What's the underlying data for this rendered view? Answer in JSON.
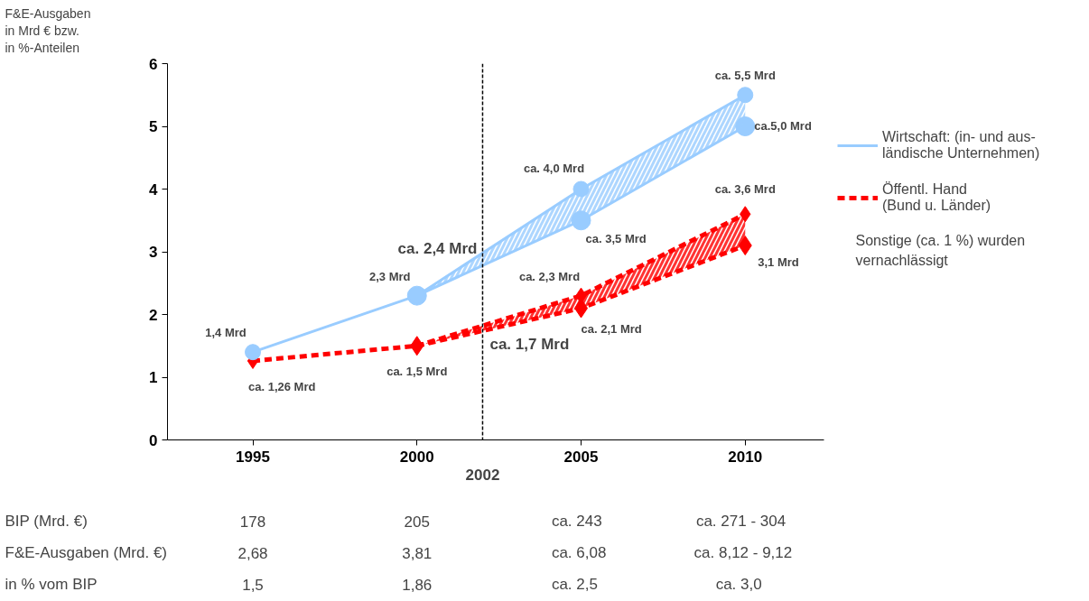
{
  "chart_data": {
    "type": "line",
    "ylabel": "F&E-Ausgaben\nin Mrd € bzw.\nin %-Anteilen",
    "x": [
      1995,
      2000,
      2005,
      2010
    ],
    "xlim": [
      1992.4,
      2012.4
    ],
    "xticks": [
      1995,
      2000,
      2005,
      2010
    ],
    "ylim": [
      0,
      6
    ],
    "yticks": [
      0,
      1,
      2,
      3,
      4,
      5,
      6
    ],
    "grid": false,
    "legend": "right",
    "series": [
      {
        "name": "Wirtschaft: (in- und aus-\nländische Unternehmen)",
        "color": "#99ccff",
        "marker": "circle",
        "line_style": "solid",
        "values": [
          1.4,
          2.3,
          4.0,
          5.5
        ],
        "lower": [
          null,
          2.3,
          3.5,
          5.0
        ],
        "upper": [
          null,
          2.3,
          4.0,
          5.5
        ],
        "value_labels": [
          "1,4 Mrd",
          "2,3 Mrd",
          "ca. 4,0 Mrd",
          "ca. 5,5 Mrd"
        ]
      },
      {
        "color": "#99ccff",
        "marker": "circle",
        "line_style": "solid",
        "values": [
          null,
          2.3,
          3.5,
          5.0
        ],
        "value_labels": [
          null,
          null,
          "ca. 3,5 Mrd",
          "ca.5,0 Mrd"
        ]
      },
      {
        "name": "Öffentl. Hand\n(Bund u. Länder)",
        "color": "#ff0000",
        "marker": "diamond",
        "line_style": "dashed",
        "values": [
          1.26,
          1.5,
          2.3,
          3.6
        ],
        "lower": [
          null,
          1.5,
          2.1,
          3.1
        ],
        "upper": [
          null,
          1.5,
          2.3,
          3.6
        ],
        "value_labels": [
          "ca. 1,26 Mrd",
          "ca. 1,5 Mrd",
          "ca. 2,3 Mrd",
          "ca. 3,6 Mrd"
        ]
      },
      {
        "color": "#ff0000",
        "marker": "diamond",
        "line_style": "dashed",
        "values": [
          null,
          1.5,
          2.1,
          3.1
        ],
        "value_labels": [
          null,
          null,
          "ca. 2,1 Mrd",
          "3,1 Mrd"
        ]
      }
    ],
    "ref_lines": [
      {
        "axis": "x",
        "value": 2002,
        "label": "2002",
        "color": "#000000",
        "line_style": "dashed"
      }
    ],
    "annotations": [
      {
        "text": "ca. 2,4 Mrd",
        "x": 2002,
        "y": 2.8
      },
      {
        "text": "ca. 1,7 Mrd",
        "x": 2002,
        "y": 1.72
      },
      "Sonstige (ca. 1 %) wurden\nvernachlässigt",
      "BIP (Mrd. €)",
      "178",
      "205",
      "ca.   243",
      "ca.   271 - 304",
      "F&E-Ausgaben (Mrd. €)",
      "2,68",
      "3,81",
      "ca.  6,08",
      "ca.  8,12 - 9,12",
      "in % vom BIP",
      "1,5",
      "1,86",
      "ca.    2,5",
      "ca.    3,0"
    ]
  }
}
